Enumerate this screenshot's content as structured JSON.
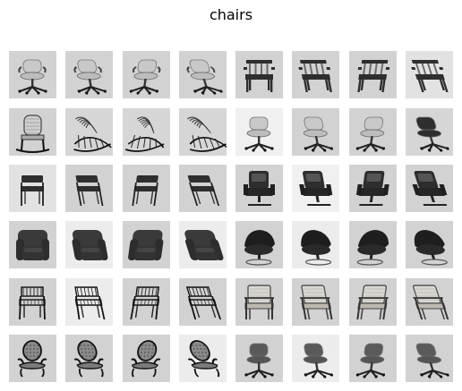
{
  "figure": {
    "title": "chairs"
  },
  "style": {
    "tile_backgrounds": [
      "#d6d6d6",
      "#cfcfcf",
      "#d9d9d9",
      "#e6e6e6",
      "#f0f0f0"
    ],
    "chair_dark": "#2e2e2e",
    "chair_mid": "#6b6b6b",
    "chair_light": "#bdbdbd"
  },
  "rows": [
    {
      "group": "swivel-office-chairs-and-armchairs",
      "tiles": [
        {
          "kind": "office-light",
          "bg": "#d2d2d2"
        },
        {
          "kind": "office-light-angled",
          "bg": "#d2d2d2"
        },
        {
          "kind": "office-light-angled-2",
          "bg": "#d2d2d2"
        },
        {
          "kind": "office-light-side",
          "bg": "#d2d2d2"
        },
        {
          "kind": "wood-armchair",
          "bg": "#d2d2d2"
        },
        {
          "kind": "wood-armchair-angled",
          "bg": "#d2d2d2"
        },
        {
          "kind": "wood-armchair-angled-2",
          "bg": "#d2d2d2"
        },
        {
          "kind": "wood-armchair-side",
          "bg": "#e2e2e2"
        }
      ]
    },
    {
      "group": "rocking-chairs-and-task-chairs",
      "tiles": [
        {
          "kind": "rocker-tall",
          "bg": "#d2d2d2"
        },
        {
          "kind": "rocker-wicker",
          "bg": "#d6d6d6"
        },
        {
          "kind": "rocker-wicker-angled",
          "bg": "#d6d6d6"
        },
        {
          "kind": "rocker-wicker-side",
          "bg": "#d6d6d6"
        },
        {
          "kind": "task-light",
          "bg": "#f0f0f0"
        },
        {
          "kind": "task-light-angled",
          "bg": "#d2d2d2"
        },
        {
          "kind": "task-light-angled-2",
          "bg": "#d2d2d2"
        },
        {
          "kind": "task-dark-side",
          "bg": "#d6d6d6"
        }
      ]
    },
    {
      "group": "side-chairs-and-executive-chairs",
      "tiles": [
        {
          "kind": "side-black",
          "bg": "#e2e2e2"
        },
        {
          "kind": "side-black-angled",
          "bg": "#d2d2d2"
        },
        {
          "kind": "side-black-angled-2",
          "bg": "#d2d2d2"
        },
        {
          "kind": "side-black-side",
          "bg": "#d2d2d2"
        },
        {
          "kind": "exec-dark",
          "bg": "#d2d2d2"
        },
        {
          "kind": "exec-dark-angled",
          "bg": "#f0f0f0"
        },
        {
          "kind": "exec-dark-angled-2",
          "bg": "#d2d2d2"
        },
        {
          "kind": "exec-dark-side",
          "bg": "#d2d2d2"
        }
      ]
    },
    {
      "group": "club-chairs-and-lounge-chairs",
      "tiles": [
        {
          "kind": "club",
          "bg": "#d2d2d2"
        },
        {
          "kind": "club-angled",
          "bg": "#ececec"
        },
        {
          "kind": "club-angled-2",
          "bg": "#d2d2d2"
        },
        {
          "kind": "club-side",
          "bg": "#ececec"
        },
        {
          "kind": "lounge",
          "bg": "#d2d2d2"
        },
        {
          "kind": "lounge-angled",
          "bg": "#ececec"
        },
        {
          "kind": "lounge-angled-2",
          "bg": "#d2d2d2"
        },
        {
          "kind": "lounge-side",
          "bg": "#d2d2d2"
        }
      ]
    },
    {
      "group": "wire-chairs-and-cushioned-armchairs",
      "tiles": [
        {
          "kind": "wire",
          "bg": "#d2d2d2"
        },
        {
          "kind": "wire-angled",
          "bg": "#ececec"
        },
        {
          "kind": "wire-angled-2",
          "bg": "#d2d2d2"
        },
        {
          "kind": "wire-side",
          "bg": "#d2d2d2"
        },
        {
          "kind": "cushion-armchair",
          "bg": "#d2d2d2"
        },
        {
          "kind": "cushion-armchair-angled",
          "bg": "#d2d2d2"
        },
        {
          "kind": "cushion-armchair-angled-2",
          "bg": "#d2d2d2"
        },
        {
          "kind": "cushion-armchair-side",
          "bg": "#d2d2d2"
        }
      ]
    },
    {
      "group": "baroque-chairs-and-small-task-chairs",
      "tiles": [
        {
          "kind": "baroque",
          "bg": "#d2d2d2"
        },
        {
          "kind": "baroque-angled",
          "bg": "#d2d2d2"
        },
        {
          "kind": "baroque-angled-2",
          "bg": "#d2d2d2"
        },
        {
          "kind": "baroque-side",
          "bg": "#ececec"
        },
        {
          "kind": "small-task",
          "bg": "#d2d2d2"
        },
        {
          "kind": "small-task-angled",
          "bg": "#ececec"
        },
        {
          "kind": "small-task-angled-2",
          "bg": "#d2d2d2"
        },
        {
          "kind": "small-task-side",
          "bg": "#d2d2d2"
        }
      ]
    }
  ]
}
